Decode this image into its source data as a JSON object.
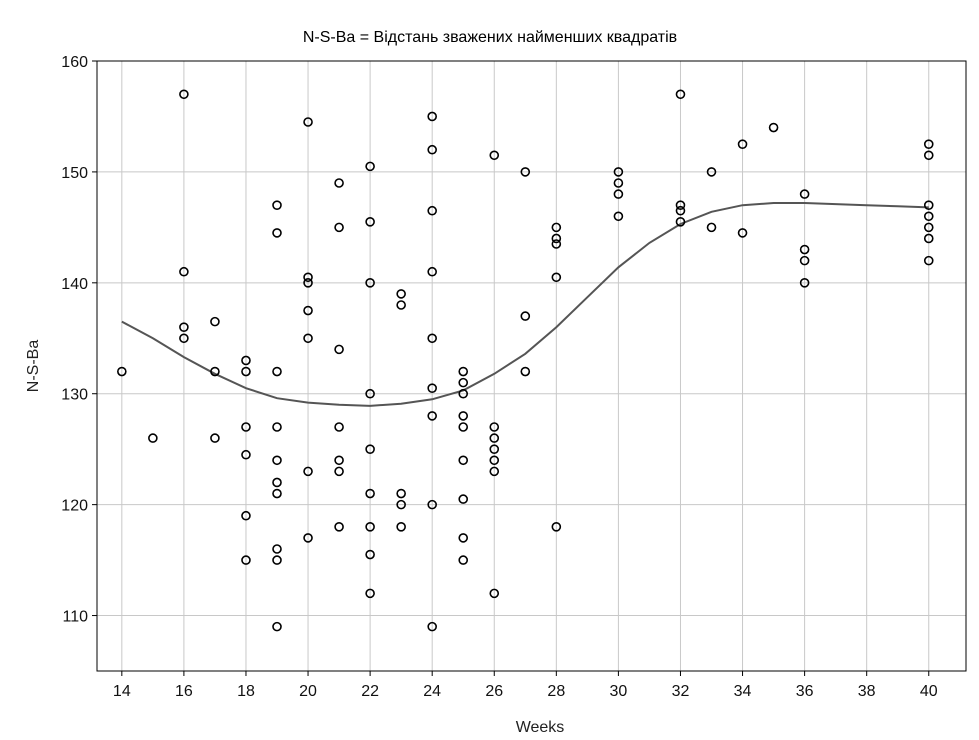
{
  "chart_data": {
    "type": "scatter",
    "title": "N-S-Ba = Відстань зважених найменших квадратів",
    "xlabel": "Weeks",
    "ylabel": "N-S-Ba",
    "xlim": [
      13.2,
      41.2
    ],
    "ylim": [
      105,
      160
    ],
    "xticks": [
      14,
      16,
      18,
      20,
      22,
      24,
      26,
      28,
      30,
      32,
      34,
      36,
      38,
      40
    ],
    "yticks": [
      110,
      120,
      130,
      140,
      150,
      160
    ],
    "grid": true,
    "points": [
      [
        14,
        132
      ],
      [
        15,
        126
      ],
      [
        16,
        157
      ],
      [
        16,
        141
      ],
      [
        16,
        136
      ],
      [
        16,
        135
      ],
      [
        17,
        136.5
      ],
      [
        17,
        132
      ],
      [
        17,
        126
      ],
      [
        18,
        133
      ],
      [
        18,
        132
      ],
      [
        18,
        127
      ],
      [
        18,
        124.5
      ],
      [
        18,
        119
      ],
      [
        18,
        115
      ],
      [
        19,
        147
      ],
      [
        19,
        144.5
      ],
      [
        19,
        132
      ],
      [
        19,
        127
      ],
      [
        19,
        124
      ],
      [
        19,
        122
      ],
      [
        19,
        121
      ],
      [
        19,
        116
      ],
      [
        19,
        115
      ],
      [
        19,
        109
      ],
      [
        20,
        154.5
      ],
      [
        20,
        140.5
      ],
      [
        20,
        140
      ],
      [
        20,
        137.5
      ],
      [
        20,
        135
      ],
      [
        20,
        123
      ],
      [
        20,
        117
      ],
      [
        21,
        149
      ],
      [
        21,
        145
      ],
      [
        21,
        134
      ],
      [
        21,
        127
      ],
      [
        21,
        124
      ],
      [
        21,
        123
      ],
      [
        21,
        118
      ],
      [
        22,
        150.5
      ],
      [
        22,
        145.5
      ],
      [
        22,
        140
      ],
      [
        22,
        130
      ],
      [
        22,
        125
      ],
      [
        22,
        121
      ],
      [
        22,
        118
      ],
      [
        22,
        115.5
      ],
      [
        22,
        112
      ],
      [
        23,
        139
      ],
      [
        23,
        138
      ],
      [
        23,
        121
      ],
      [
        23,
        120
      ],
      [
        23,
        118
      ],
      [
        24,
        155
      ],
      [
        24,
        152
      ],
      [
        24,
        146.5
      ],
      [
        24,
        141
      ],
      [
        24,
        135
      ],
      [
        24,
        130.5
      ],
      [
        24,
        128
      ],
      [
        24,
        120
      ],
      [
        24,
        109
      ],
      [
        25,
        132
      ],
      [
        25,
        131
      ],
      [
        25,
        130
      ],
      [
        25,
        128
      ],
      [
        25,
        127
      ],
      [
        25,
        124
      ],
      [
        25,
        120.5
      ],
      [
        25,
        117
      ],
      [
        25,
        115
      ],
      [
        26,
        151.5
      ],
      [
        26,
        127
      ],
      [
        26,
        126
      ],
      [
        26,
        125
      ],
      [
        26,
        124
      ],
      [
        26,
        123
      ],
      [
        26,
        112
      ],
      [
        27,
        150
      ],
      [
        27,
        137
      ],
      [
        27,
        132
      ],
      [
        28,
        145
      ],
      [
        28,
        144
      ],
      [
        28,
        143.5
      ],
      [
        28,
        140.5
      ],
      [
        28,
        118
      ],
      [
        30,
        150
      ],
      [
        30,
        149
      ],
      [
        30,
        148
      ],
      [
        30,
        146
      ],
      [
        32,
        157
      ],
      [
        32,
        147
      ],
      [
        32,
        146.5
      ],
      [
        32,
        145.5
      ],
      [
        33,
        150
      ],
      [
        33,
        145
      ],
      [
        34,
        152.5
      ],
      [
        34,
        144.5
      ],
      [
        35,
        154
      ],
      [
        36,
        148
      ],
      [
        36,
        143
      ],
      [
        36,
        142
      ],
      [
        36,
        140
      ],
      [
        40,
        152.5
      ],
      [
        40,
        151.5
      ],
      [
        40,
        147
      ],
      [
        40,
        146
      ],
      [
        40,
        145
      ],
      [
        40,
        144
      ],
      [
        40,
        142
      ]
    ],
    "fit_line": [
      [
        14,
        136.5
      ],
      [
        15,
        135
      ],
      [
        16,
        133.3
      ],
      [
        17,
        131.8
      ],
      [
        18,
        130.5
      ],
      [
        19,
        129.6
      ],
      [
        20,
        129.2
      ],
      [
        21,
        129
      ],
      [
        22,
        128.9
      ],
      [
        23,
        129.1
      ],
      [
        24,
        129.5
      ],
      [
        25,
        130.3
      ],
      [
        26,
        131.8
      ],
      [
        27,
        133.6
      ],
      [
        28,
        136
      ],
      [
        29,
        138.7
      ],
      [
        30,
        141.4
      ],
      [
        31,
        143.6
      ],
      [
        32,
        145.3
      ],
      [
        33,
        146.4
      ],
      [
        34,
        147
      ],
      [
        35,
        147.2
      ],
      [
        36,
        147.2
      ],
      [
        37,
        147.1
      ],
      [
        38,
        147
      ],
      [
        39,
        146.9
      ],
      [
        40,
        146.8
      ]
    ]
  }
}
